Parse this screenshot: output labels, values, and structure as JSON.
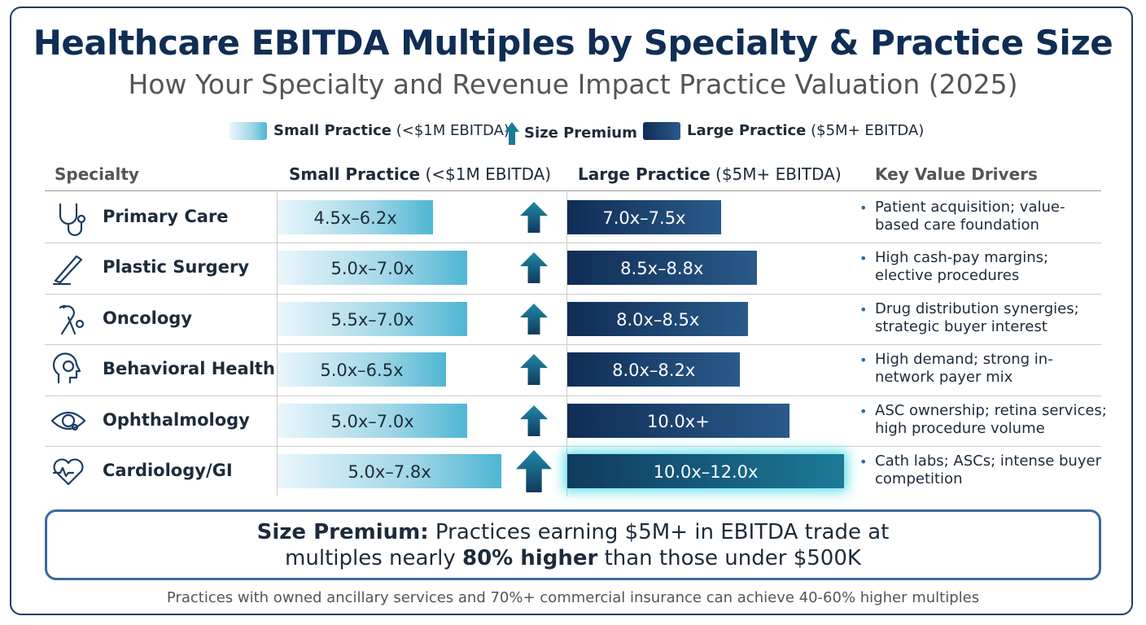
{
  "header": {
    "title": "Healthcare EBITDA Multiples by Specialty & Practice Size",
    "subtitle": "How Your Specialty and Revenue Impact Practice Valuation (2025)"
  },
  "legend": {
    "small": {
      "bold": "Small Practice",
      "rest": "(<$1M EBITDA)"
    },
    "premium": "Size Premium",
    "large": {
      "bold": "Large Practice",
      "rest": "($5M+ EBITDA)"
    }
  },
  "table": {
    "columns": {
      "specialty": "Specialty",
      "small": {
        "bold": "Small Practice",
        "rest": "(<$1M EBITDA)"
      },
      "large": {
        "bold": "Large Practice",
        "rest": "($5M+ EBITDA)"
      },
      "drivers": "Key Value Drivers"
    },
    "rows": [
      {
        "specialty": "Primary Care",
        "small": {
          "low": 4.5,
          "high": 6.2,
          "label": "4.5x–6.2x"
        },
        "large": {
          "low": 7.0,
          "high": 7.5,
          "label": "7.0x–7.5x"
        },
        "drivers": "Patient acquisition; value-based care foundation"
      },
      {
        "specialty": "Plastic Surgery",
        "small": {
          "low": 5.0,
          "high": 7.0,
          "label": "5.0x–7.0x"
        },
        "large": {
          "low": 8.5,
          "high": 8.8,
          "label": "8.5x–8.8x"
        },
        "drivers": "High cash-pay margins; elective procedures"
      },
      {
        "specialty": "Oncology",
        "small": {
          "low": 5.5,
          "high": 7.0,
          "label": "5.5x–7.0x"
        },
        "large": {
          "low": 8.0,
          "high": 8.5,
          "label": "8.0x–8.5x"
        },
        "drivers": "Drug distribution synergies; strategic buyer interest"
      },
      {
        "specialty": "Behavioral Health",
        "small": {
          "low": 5.0,
          "high": 6.5,
          "label": "5.0x–6.5x"
        },
        "large": {
          "low": 8.0,
          "high": 8.2,
          "label": "8.0x–8.2x"
        },
        "drivers": "High demand; strong in-network payer mix"
      },
      {
        "specialty": "Ophthalmology",
        "small": {
          "low": 5.0,
          "high": 7.0,
          "label": "5.0x–7.0x"
        },
        "large": {
          "low": 10.0,
          "label": "10.0x+"
        },
        "drivers": "ASC ownership; retina services; high procedure volume"
      },
      {
        "specialty": "Cardiology/GI",
        "small": {
          "low": 5.0,
          "high": 7.8,
          "label": "5.0x–7.8x"
        },
        "large": {
          "low": 10.0,
          "high": 12.0,
          "label": "10.0x–12.0x"
        },
        "drivers": "Cath labs; ASCs; intense buyer competition"
      }
    ]
  },
  "summary": {
    "lead": "Size Premium:",
    "text1": " Practices earning $5M+ in EBITDA trade at multiples nearly ",
    "bold": "80% higher",
    "text2": " than those under $500K"
  },
  "footer": "Practices with owned ancillary services and 70%+ commercial insurance can achieve 40-60% higher multiples"
}
